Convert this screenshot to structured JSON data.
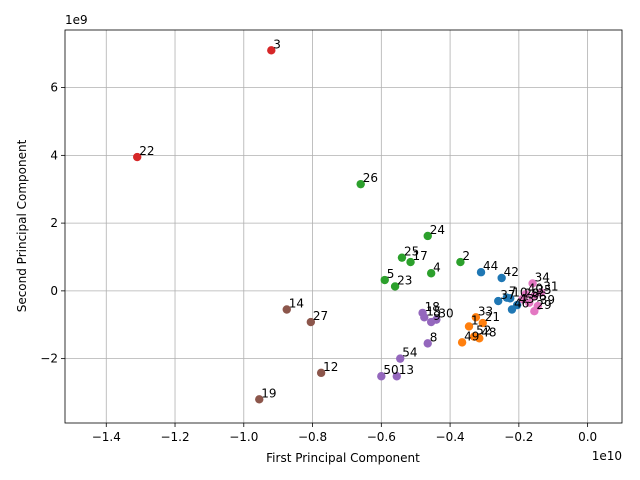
{
  "chart_data": {
    "type": "scatter",
    "xlabel": "First Principal Component",
    "ylabel": "Second Principal Component",
    "x_multiplier_label": "1e10",
    "y_multiplier_label": "1e9",
    "x_scale": 10000000000,
    "y_scale": 1000000000,
    "xlim": [
      -1.52,
      0.1
    ],
    "ylim": [
      -3.9,
      7.7
    ],
    "x_ticks": [
      {
        "value": -1.4,
        "label": "−1.4"
      },
      {
        "value": -1.2,
        "label": "−1.2"
      },
      {
        "value": -1.0,
        "label": "−1.0"
      },
      {
        "value": -0.8,
        "label": "−0.8"
      },
      {
        "value": -0.6,
        "label": "−0.6"
      },
      {
        "value": -0.4,
        "label": "−0.4"
      },
      {
        "value": -0.2,
        "label": "−0.2"
      },
      {
        "value": 0.0,
        "label": "0.0"
      }
    ],
    "y_ticks": [
      {
        "value": -2,
        "label": "−2"
      },
      {
        "value": 0,
        "label": "0"
      },
      {
        "value": 2,
        "label": "2"
      },
      {
        "value": 4,
        "label": "4"
      },
      {
        "value": 6,
        "label": "6"
      }
    ],
    "grid": true,
    "legend": "none",
    "colors": {
      "red": "#d62728",
      "green": "#2ca02c",
      "blue": "#1f77b4",
      "orange": "#ff7f0e",
      "purple": "#9467bd",
      "brown": "#8c564b",
      "pink": "#e377c2"
    },
    "points": [
      {
        "label": "3",
        "x": -0.92,
        "y": 7.1,
        "color": "red"
      },
      {
        "label": "22",
        "x": -1.31,
        "y": 3.95,
        "color": "red"
      },
      {
        "label": "26",
        "x": -0.66,
        "y": 3.15,
        "color": "green"
      },
      {
        "label": "24",
        "x": -0.465,
        "y": 1.62,
        "color": "green"
      },
      {
        "label": "25",
        "x": -0.54,
        "y": 0.98,
        "color": "green"
      },
      {
        "label": "17",
        "x": -0.515,
        "y": 0.85,
        "color": "green"
      },
      {
        "label": "2",
        "x": -0.37,
        "y": 0.85,
        "color": "green"
      },
      {
        "label": "4",
        "x": -0.455,
        "y": 0.52,
        "color": "green"
      },
      {
        "label": "5",
        "x": -0.59,
        "y": 0.32,
        "color": "green"
      },
      {
        "label": "23",
        "x": -0.56,
        "y": 0.13,
        "color": "green"
      },
      {
        "label": "44",
        "x": -0.31,
        "y": 0.55,
        "color": "blue"
      },
      {
        "label": "42",
        "x": -0.25,
        "y": 0.38,
        "color": "blue"
      },
      {
        "label": "34",
        "x": -0.16,
        "y": 0.22,
        "color": "pink"
      },
      {
        "label": "31",
        "x": -0.135,
        "y": -0.05,
        "color": "pink"
      },
      {
        "label": "40",
        "x": -0.18,
        "y": -0.1,
        "color": "pink"
      },
      {
        "label": "35",
        "x": -0.155,
        "y": -0.15,
        "color": "pink"
      },
      {
        "label": "7",
        "x": -0.235,
        "y": -0.2,
        "color": "blue"
      },
      {
        "label": "10",
        "x": -0.225,
        "y": -0.22,
        "color": "blue"
      },
      {
        "label": "28",
        "x": -0.19,
        "y": -0.25,
        "color": "pink"
      },
      {
        "label": "36",
        "x": -0.17,
        "y": -0.35,
        "color": "pink"
      },
      {
        "label": "43",
        "x": -0.205,
        "y": -0.42,
        "color": "blue"
      },
      {
        "label": "39",
        "x": -0.145,
        "y": -0.45,
        "color": "pink"
      },
      {
        "label": "37",
        "x": -0.26,
        "y": -0.3,
        "color": "blue"
      },
      {
        "label": "46",
        "x": -0.22,
        "y": -0.55,
        "color": "blue"
      },
      {
        "label": "29",
        "x": -0.155,
        "y": -0.6,
        "color": "pink"
      },
      {
        "label": "14",
        "x": -0.875,
        "y": -0.55,
        "color": "brown"
      },
      {
        "label": "27",
        "x": -0.805,
        "y": -0.92,
        "color": "brown"
      },
      {
        "label": "18",
        "x": -0.48,
        "y": -0.65,
        "color": "purple"
      },
      {
        "label": "15",
        "x": -0.475,
        "y": -0.78,
        "color": "purple"
      },
      {
        "label": "9",
        "x": -0.455,
        "y": -0.92,
        "color": "purple"
      },
      {
        "label": "30",
        "x": -0.44,
        "y": -0.85,
        "color": "purple"
      },
      {
        "label": "33",
        "x": -0.325,
        "y": -0.78,
        "color": "orange"
      },
      {
        "label": "1",
        "x": -0.345,
        "y": -1.05,
        "color": "orange"
      },
      {
        "label": "21",
        "x": -0.305,
        "y": -0.95,
        "color": "orange"
      },
      {
        "label": "52",
        "x": -0.33,
        "y": -1.35,
        "color": "orange"
      },
      {
        "label": "48",
        "x": -0.315,
        "y": -1.4,
        "color": "orange"
      },
      {
        "label": "49",
        "x": -0.365,
        "y": -1.52,
        "color": "orange"
      },
      {
        "label": "8",
        "x": -0.465,
        "y": -1.55,
        "color": "purple"
      },
      {
        "label": "54",
        "x": -0.545,
        "y": -2.0,
        "color": "purple"
      },
      {
        "label": "12",
        "x": -0.775,
        "y": -2.42,
        "color": "brown"
      },
      {
        "label": "50",
        "x": -0.6,
        "y": -2.52,
        "color": "purple"
      },
      {
        "label": "13",
        "x": -0.555,
        "y": -2.52,
        "color": "purple"
      },
      {
        "label": "19",
        "x": -0.955,
        "y": -3.2,
        "color": "brown"
      }
    ]
  }
}
